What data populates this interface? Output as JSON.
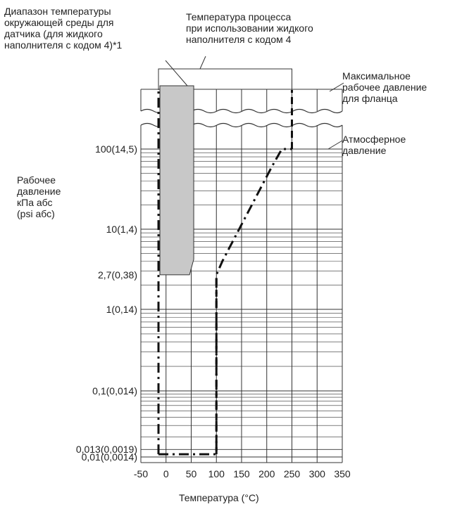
{
  "chart_data": {
    "type": "line",
    "title": "",
    "xlabel": "Температура (°C)",
    "ylabel": "Рабочее\nдавление\nкПа абс\n(psi абс)",
    "x_ticks": [
      "-50",
      "0",
      "50",
      "100",
      "150",
      "200",
      "250",
      "300",
      "350"
    ],
    "xlim": [
      -50,
      350
    ],
    "y_scale": "log",
    "y_ticks": [
      {
        "value": 0.01,
        "label": "0,01(0,0014)"
      },
      {
        "value": 0.013,
        "label": "0,013(0,0019)"
      },
      {
        "value": 0.1,
        "label": "0,1(0,014)"
      },
      {
        "value": 1,
        "label": "1(0,14)"
      },
      {
        "value": 2.7,
        "label": "2,7(0,38)"
      },
      {
        "value": 10,
        "label": "10(1,4)"
      },
      {
        "value": 100,
        "label": "100(14,5)"
      }
    ],
    "grid": true,
    "series": [
      {
        "line_style": "dash-dot",
        "points": [
          {
            "x": -15,
            "y": 0.011
          },
          {
            "x": 100,
            "y": 0.011
          },
          {
            "x": 100,
            "y": 2.7
          },
          {
            "x": 112,
            "y": 4
          },
          {
            "x": 210,
            "y": 60
          },
          {
            "x": 230,
            "y": 100
          },
          {
            "x": 250,
            "y": 100
          }
        ]
      },
      {
        "line_style": "dash-dot",
        "points": [
          {
            "x": -15,
            "y": 0.011
          },
          {
            "x": -15,
            "y": 100
          },
          {
            "x": -15,
            "y": "max"
          }
        ]
      },
      {
        "line_style": "dashed",
        "points": [
          {
            "x": 100,
            "y": 0.011
          },
          {
            "x": 100,
            "y": 2.7
          }
        ]
      },
      {
        "line_style": "dashed",
        "points": [
          {
            "x": 250,
            "y": 100
          },
          {
            "x": 250,
            "y": "max"
          }
        ]
      }
    ],
    "shaded_region": {
      "x": [
        -15,
        55
      ],
      "y_bottom": 2.7,
      "y_top": "max",
      "color": "#c8c8c8"
    },
    "annotations": [
      {
        "text": "Диапазон температуры\nокружающей среды для\nдатчика (для жидкого\nнаполнителя с кодом 4)*1"
      },
      {
        "text": "Температура процесса\nпри использовании жидкого\nнаполнителя с кодом 4"
      },
      {
        "text": "Максимальное\nрабочее давление\nдля фланца"
      },
      {
        "text": "Атмосферное\nдавление"
      }
    ]
  }
}
